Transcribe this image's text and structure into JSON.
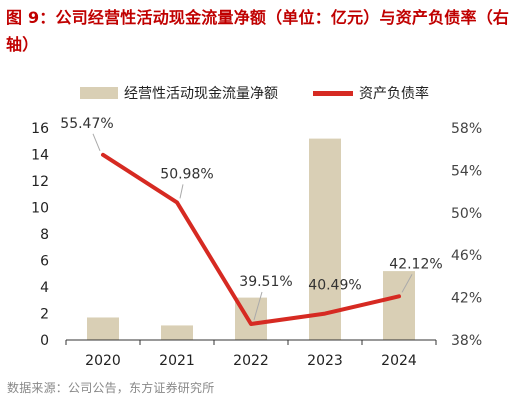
{
  "title": "图 9：公司经营性活动现金流量净额（单位：亿元）与资产负债率（右轴）",
  "source": "数据来源：公司公告，东方证券研究所",
  "chart_data": {
    "type": "bar",
    "categories": [
      "2020",
      "2021",
      "2022",
      "2023",
      "2024"
    ],
    "series": [
      {
        "name": "经营性活动现金流量净额",
        "type": "bar",
        "axis": "left",
        "color": "#d9cfb5",
        "values": [
          1.7,
          1.1,
          3.2,
          15.2,
          5.2
        ]
      },
      {
        "name": "资产负债率",
        "type": "line",
        "axis": "right",
        "color": "#d62a22",
        "values": [
          55.47,
          50.98,
          39.51,
          40.49,
          42.12
        ],
        "labels": [
          "55.47%",
          "50.98%",
          "39.51%",
          "40.49%",
          "42.12%"
        ]
      }
    ],
    "y_left": {
      "min": 0,
      "max": 16,
      "ticks": [
        0,
        2,
        4,
        6,
        8,
        10,
        12,
        14,
        16
      ],
      "tick_labels": [
        "0",
        "2",
        "4",
        "6",
        "8",
        "10",
        "12",
        "14",
        "16"
      ]
    },
    "y_right": {
      "min": 38,
      "max": 58,
      "ticks": [
        38,
        42,
        46,
        50,
        54,
        58
      ],
      "tick_labels": [
        "38%",
        "42%",
        "46%",
        "50%",
        "54%",
        "58%"
      ]
    },
    "grid": false,
    "legend_position": "top"
  }
}
